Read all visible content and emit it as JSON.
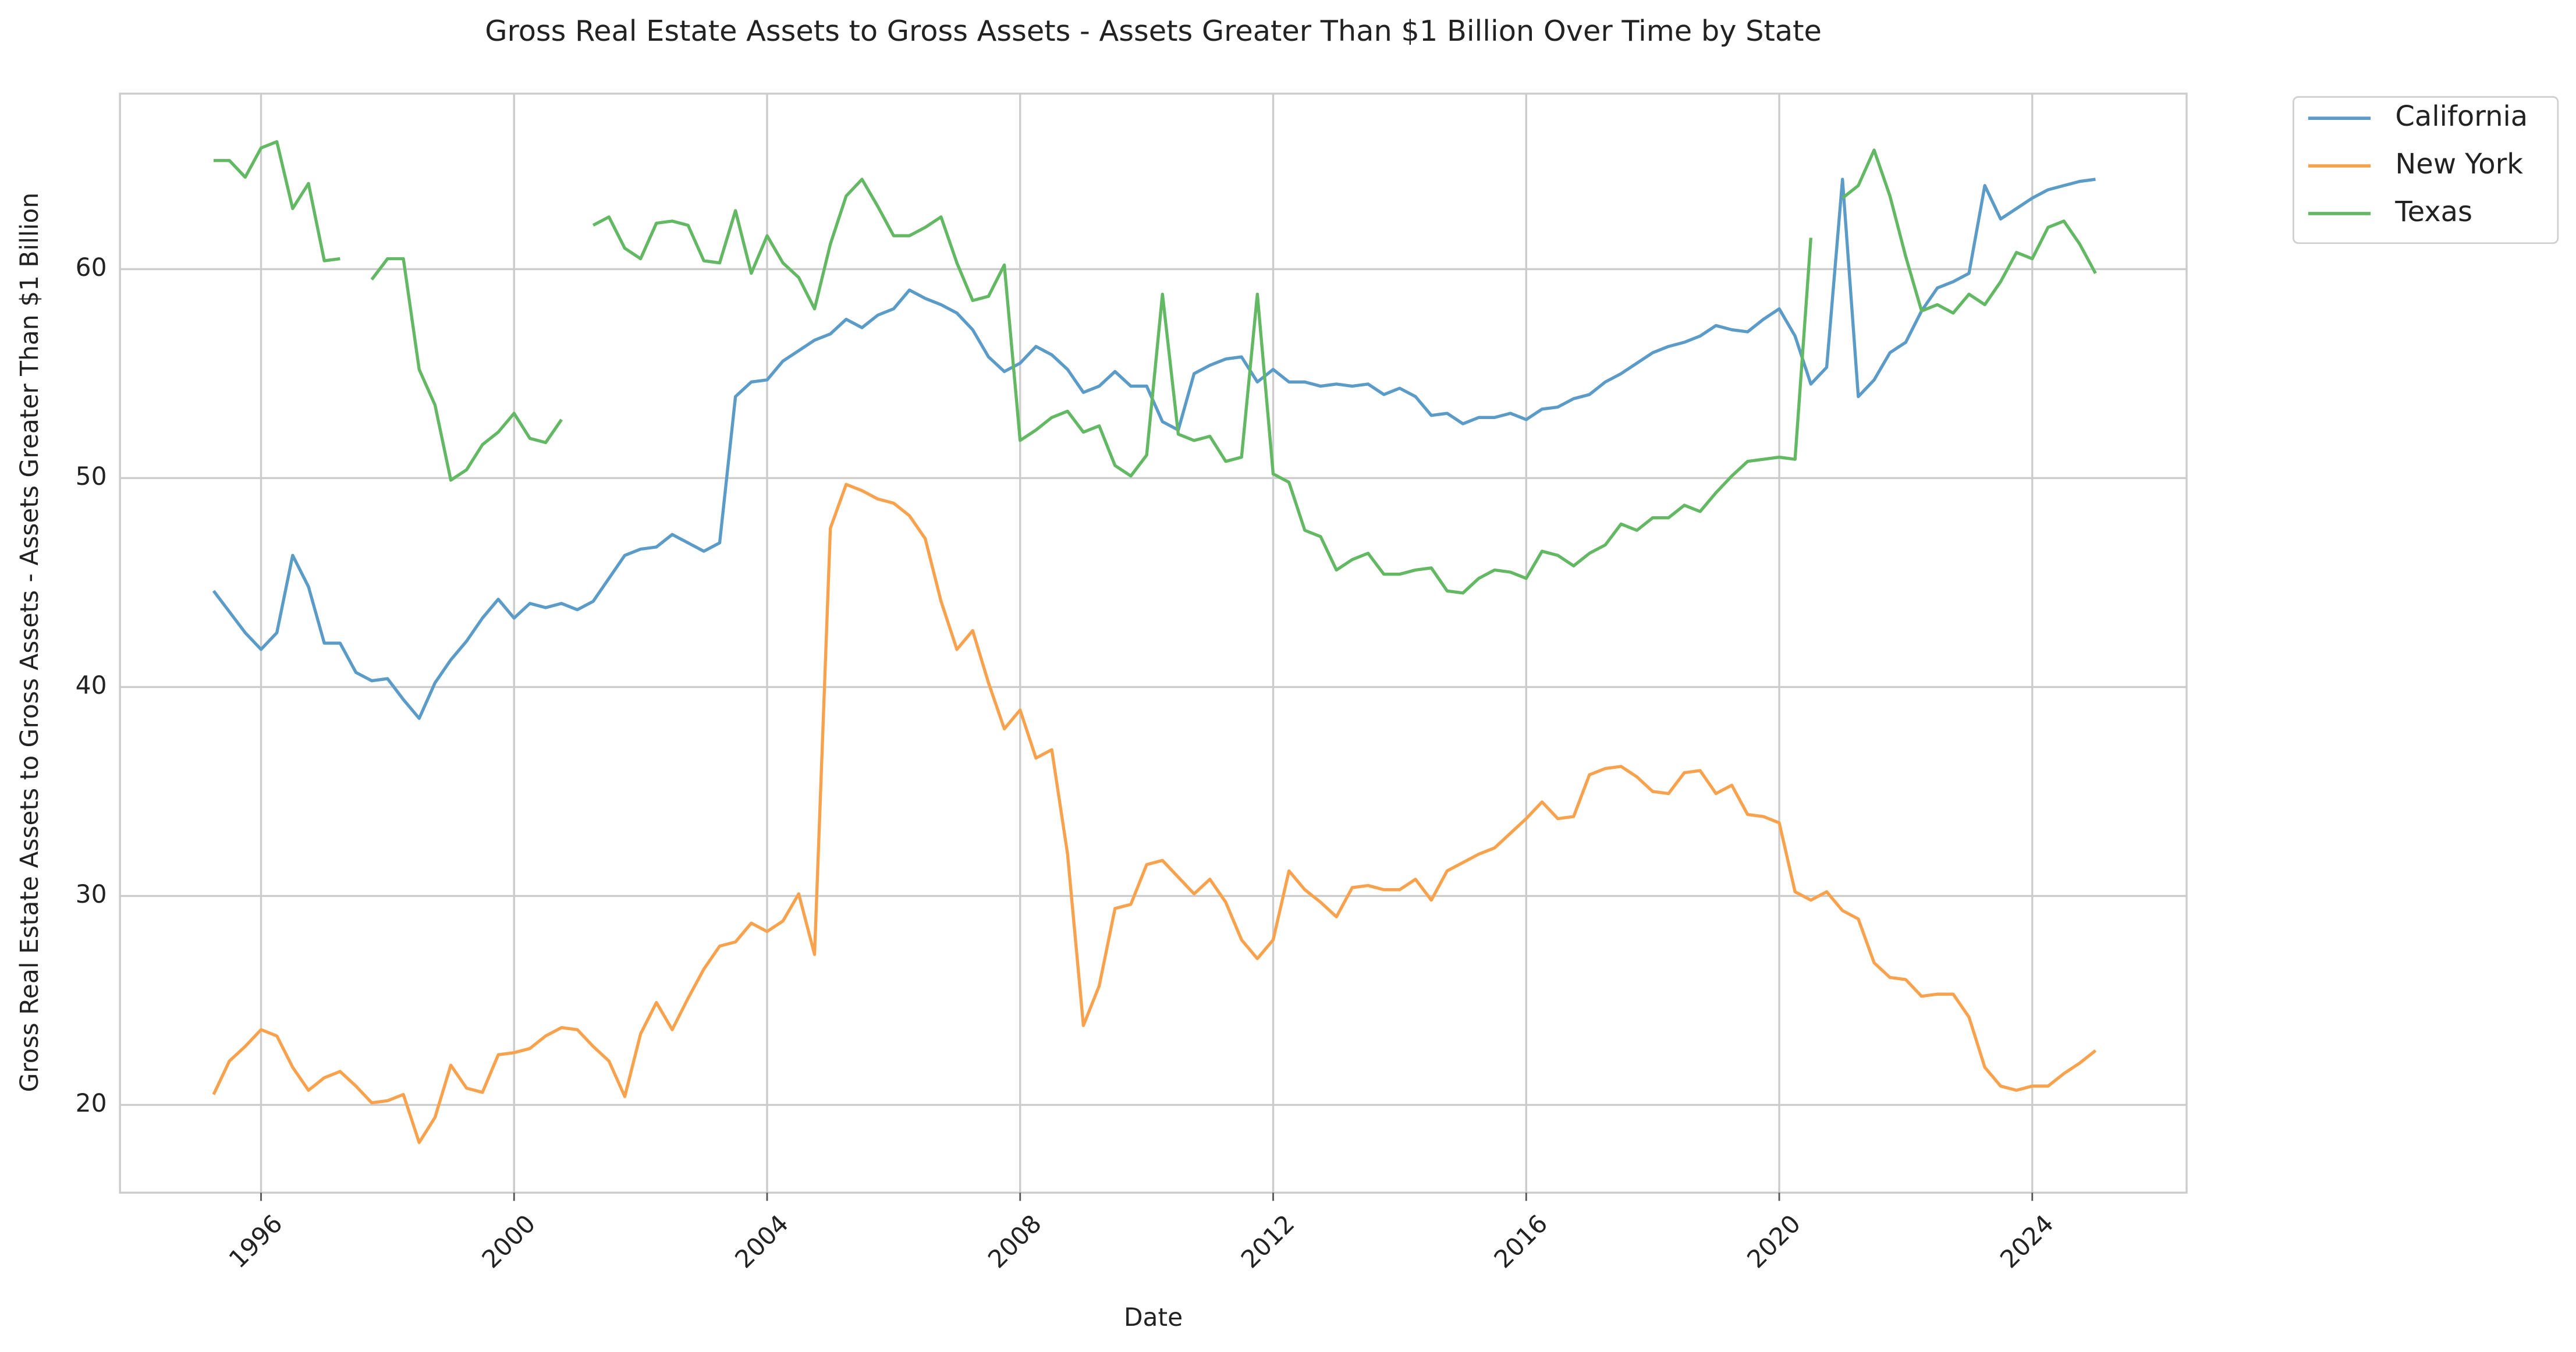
{
  "chart_data": {
    "type": "line",
    "title": "Gross Real Estate Assets to Gross Assets - Assets Greater Than $1 Billion Over Time by State",
    "x_label": "Date",
    "y_label": "Gross Real Estate Assets to Gross Assets - Assets Greater Than $1 Billion",
    "x": [
      1995.25,
      1995.5,
      1995.75,
      1996,
      1996.25,
      1996.5,
      1996.75,
      1997,
      1997.25,
      1997.5,
      1997.75,
      1998,
      1998.25,
      1998.5,
      1998.75,
      1999,
      1999.25,
      1999.5,
      1999.75,
      2000,
      2000.25,
      2000.5,
      2000.75,
      2001,
      2001.25,
      2001.5,
      2001.75,
      2002,
      2002.25,
      2002.5,
      2002.75,
      2003,
      2003.25,
      2003.5,
      2003.75,
      2004,
      2004.25,
      2004.5,
      2004.75,
      2005,
      2005.25,
      2005.5,
      2005.75,
      2006,
      2006.25,
      2006.5,
      2006.75,
      2007,
      2007.25,
      2007.5,
      2007.75,
      2008,
      2008.25,
      2008.5,
      2008.75,
      2009,
      2009.25,
      2009.5,
      2009.75,
      2010,
      2010.25,
      2010.5,
      2010.75,
      2011,
      2011.25,
      2011.5,
      2011.75,
      2012,
      2012.25,
      2012.5,
      2012.75,
      2013,
      2013.25,
      2013.5,
      2013.75,
      2014,
      2014.25,
      2014.5,
      2014.75,
      2015,
      2015.25,
      2015.5,
      2015.75,
      2016,
      2016.25,
      2016.5,
      2016.75,
      2017,
      2017.25,
      2017.5,
      2017.75,
      2018,
      2018.25,
      2018.5,
      2018.75,
      2019,
      2019.25,
      2019.5,
      2019.75,
      2020,
      2020.25,
      2020.5,
      2020.75,
      2021,
      2021.25,
      2021.5,
      2021.75,
      2022,
      2022.25,
      2022.5,
      2022.75,
      2023,
      2023.25,
      2023.5,
      2023.75,
      2024,
      2024.25,
      2024.5,
      2024.75,
      2025
    ],
    "series": [
      {
        "name": "California",
        "color": "#5b9bc8",
        "values": [
          44.6,
          43.6,
          42.6,
          41.8,
          42.6,
          46.3,
          44.8,
          42.1,
          42.1,
          40.7,
          40.3,
          40.4,
          39.4,
          38.5,
          40.2,
          41.3,
          42.2,
          43.3,
          44.2,
          43.3,
          44.0,
          43.8,
          44.0,
          43.7,
          44.1,
          45.2,
          46.3,
          46.6,
          46.7,
          47.3,
          46.9,
          46.5,
          46.9,
          53.9,
          54.6,
          54.7,
          55.6,
          56.1,
          56.6,
          56.9,
          57.6,
          57.2,
          57.8,
          58.1,
          59.0,
          58.6,
          58.3,
          57.9,
          57.1,
          55.8,
          55.1,
          55.5,
          56.3,
          55.9,
          55.2,
          54.1,
          54.4,
          55.1,
          54.4,
          54.4,
          52.7,
          52.3,
          55.0,
          55.4,
          55.7,
          55.8,
          54.6,
          55.2,
          54.6,
          54.6,
          54.4,
          54.5,
          54.4,
          54.5,
          54.0,
          54.3,
          53.9,
          53.0,
          53.1,
          52.6,
          52.9,
          52.9,
          53.1,
          52.8,
          53.3,
          53.4,
          53.8,
          54.0,
          54.6,
          55.0,
          55.5,
          56.0,
          56.3,
          56.5,
          56.8,
          57.3,
          57.1,
          57.0,
          57.6,
          58.1,
          56.8,
          54.5,
          55.3,
          64.3,
          53.9,
          54.7,
          56.0,
          56.5,
          58.0,
          59.1,
          59.4,
          59.8,
          64.0,
          62.4,
          62.9,
          63.4,
          63.8,
          64.0,
          64.2,
          64.3
        ]
      },
      {
        "name": "New York",
        "color": "#f9a24e",
        "values": [
          20.5,
          22.1,
          22.8,
          23.6,
          23.3,
          21.8,
          20.7,
          21.3,
          21.6,
          20.9,
          20.1,
          20.2,
          20.5,
          18.2,
          19.4,
          21.9,
          20.8,
          20.6,
          22.4,
          22.5,
          22.7,
          23.3,
          23.7,
          23.6,
          22.8,
          22.1,
          20.4,
          23.4,
          24.9,
          23.6,
          25.1,
          26.5,
          27.6,
          27.8,
          28.7,
          28.3,
          28.8,
          30.1,
          27.2,
          47.6,
          49.7,
          49.4,
          49.0,
          48.8,
          48.2,
          47.1,
          44.1,
          41.8,
          42.7,
          40.2,
          38.0,
          38.9,
          36.6,
          37.0,
          32.0,
          23.8,
          25.7,
          29.4,
          29.6,
          31.5,
          31.7,
          30.9,
          30.1,
          30.8,
          29.7,
          27.9,
          27.0,
          27.9,
          31.2,
          30.3,
          29.7,
          29.0,
          30.4,
          30.5,
          30.3,
          30.3,
          30.8,
          29.8,
          31.2,
          31.6,
          32.0,
          32.3,
          33.0,
          33.7,
          34.5,
          33.7,
          33.8,
          35.8,
          36.1,
          36.2,
          35.7,
          35.0,
          34.9,
          35.9,
          36.0,
          34.9,
          35.3,
          33.9,
          33.8,
          33.5,
          30.2,
          29.8,
          30.2,
          29.3,
          28.9,
          26.8,
          26.1,
          26.0,
          25.2,
          25.3,
          25.3,
          24.2,
          21.8,
          20.9,
          20.7,
          20.9,
          20.9,
          21.5,
          22.0,
          22.6
        ]
      },
      {
        "name": "Texas",
        "color": "#63b863",
        "values": [
          65.2,
          65.2,
          64.4,
          65.8,
          66.1,
          62.9,
          64.1,
          60.4,
          60.5,
          null,
          59.5,
          60.5,
          60.5,
          55.2,
          53.5,
          49.9,
          50.4,
          51.6,
          52.2,
          53.1,
          51.9,
          51.7,
          52.8,
          null,
          62.1,
          62.5,
          61.0,
          60.5,
          62.2,
          62.3,
          62.1,
          60.4,
          60.3,
          62.8,
          59.8,
          61.6,
          60.3,
          59.6,
          58.1,
          61.2,
          63.5,
          64.3,
          63.0,
          61.6,
          61.6,
          62.0,
          62.5,
          60.3,
          58.5,
          58.7,
          60.2,
          51.8,
          52.3,
          52.9,
          53.2,
          52.2,
          52.5,
          50.6,
          50.1,
          51.1,
          58.8,
          52.1,
          51.8,
          52.0,
          50.8,
          51.0,
          58.8,
          50.2,
          49.8,
          47.5,
          47.2,
          45.6,
          46.1,
          46.4,
          45.4,
          45.4,
          45.6,
          45.7,
          44.6,
          44.5,
          45.2,
          45.6,
          45.5,
          45.2,
          46.5,
          46.3,
          45.8,
          46.4,
          46.8,
          47.8,
          47.5,
          48.1,
          48.1,
          48.7,
          48.4,
          49.3,
          50.1,
          50.8,
          50.9,
          51.0,
          50.9,
          61.5,
          null,
          63.4,
          64.0,
          65.7,
          63.5,
          60.6,
          58.0,
          58.3,
          57.9,
          58.8,
          58.3,
          59.4,
          60.8,
          60.5,
          62.0,
          62.3,
          61.2,
          59.8
        ]
      }
    ],
    "xlim": [
      1993.77,
      2026.44
    ],
    "ylim": [
      15.8,
      68.4
    ],
    "xticks": [
      1996,
      2000,
      2004,
      2008,
      2012,
      2016,
      2020,
      2024
    ],
    "yticks": [
      20,
      30,
      40,
      50,
      60
    ],
    "grid": true,
    "legend": "outside upper right"
  }
}
